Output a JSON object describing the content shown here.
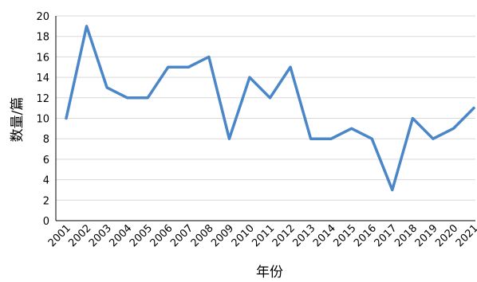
{
  "chart_data": {
    "type": "line",
    "title": "",
    "xlabel": "年份",
    "ylabel": "数量/篇",
    "ylim": [
      0,
      20
    ],
    "yticks": [
      0,
      2,
      4,
      6,
      8,
      10,
      12,
      14,
      16,
      18,
      20
    ],
    "grid": true,
    "categories": [
      "2001",
      "2002",
      "2003",
      "2004",
      "2005",
      "2006",
      "2007",
      "2008",
      "2009",
      "2010",
      "2011",
      "2012",
      "2013",
      "2014",
      "2015",
      "2016",
      "2017",
      "2018",
      "2019",
      "2020",
      "2021"
    ],
    "series": [
      {
        "values": [
          10,
          19,
          13,
          12,
          12,
          15,
          15,
          16,
          8,
          14,
          12,
          15,
          8,
          8,
          9,
          8,
          3,
          10,
          8,
          9,
          11
        ],
        "color": "#4a86c8"
      }
    ]
  }
}
